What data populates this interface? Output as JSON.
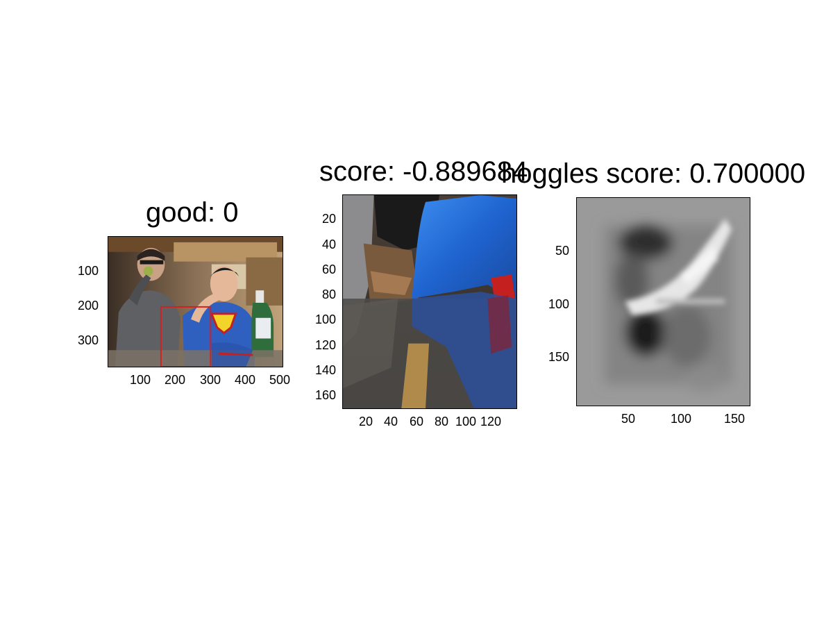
{
  "figure": {
    "panel1": {
      "title": "good: 0",
      "xticks": [
        "100",
        "200",
        "300",
        "400",
        "500"
      ],
      "yticks": [
        "100",
        "200",
        "300"
      ]
    },
    "panel2": {
      "title": "score: -0.889684",
      "xticks": [
        "20",
        "40",
        "60",
        "80",
        "100",
        "120"
      ],
      "yticks": [
        "20",
        "40",
        "60",
        "80",
        "100",
        "120",
        "140",
        "160"
      ]
    },
    "panel3": {
      "title": "hoggles score: 0.700000",
      "xticks": [
        "50",
        "100",
        "150"
      ],
      "yticks": [
        "50",
        "100",
        "150"
      ]
    },
    "colors": {
      "bbox": "#d42020",
      "axis": "#000000"
    }
  }
}
